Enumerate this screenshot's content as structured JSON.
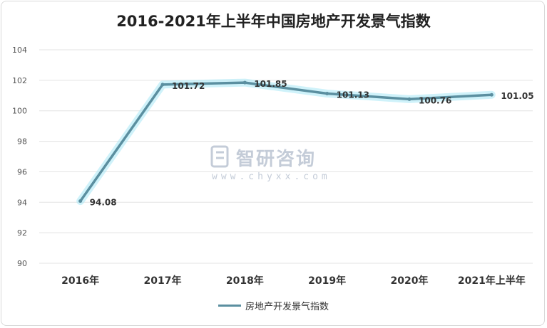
{
  "chart_data": {
    "type": "line",
    "title": "2016-2021年上半年中国房地产开发景气指数",
    "categories": [
      "2016年",
      "2017年",
      "2018年",
      "2019年",
      "2020年",
      "2021年上半年"
    ],
    "series": [
      {
        "name": "房地产开发景气指数",
        "values": [
          94.08,
          101.72,
          101.85,
          101.13,
          100.76,
          101.05
        ],
        "color": "#5b8fa0"
      }
    ],
    "data_labels": [
      "94.08",
      "101.72",
      "101.85",
      "101.13",
      "100.76",
      "101.05"
    ],
    "ylim": [
      90,
      104
    ],
    "yticks": [
      "90",
      "92",
      "94",
      "96",
      "98",
      "100",
      "102",
      "104"
    ],
    "grid": true,
    "legend": "bottom-center"
  },
  "watermark": {
    "text": "智研咨询",
    "url": "www.chyxx.com",
    "icon": "chyxx-logo-icon"
  }
}
